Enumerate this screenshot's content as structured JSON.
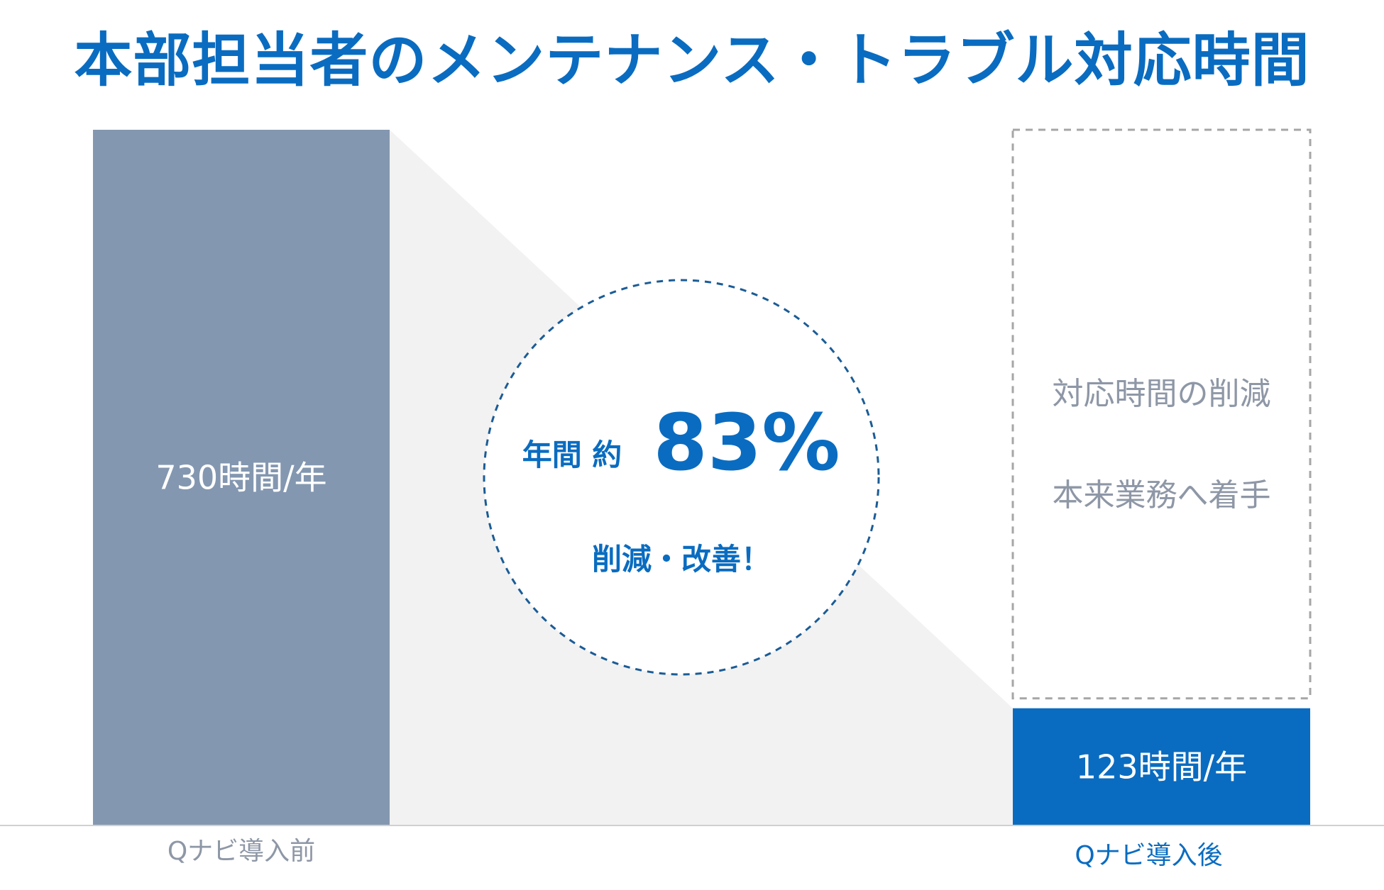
{
  "title": "本部担当者のメンテナンス・トラブル対応時間",
  "chart_data": {
    "type": "bar",
    "unit": "時間/年",
    "categories": [
      "Qナビ導入前",
      "Qナビ導入後"
    ],
    "values": [
      730,
      123
    ],
    "value_labels": [
      "730時間/年",
      "123時間/年"
    ],
    "ylim": [
      0,
      730
    ],
    "colors": {
      "before": "#8497b0",
      "after": "#0a6cc0",
      "connector": "#f2f2f2",
      "accent": "#0a6cc0",
      "muted_text": "#8e97a6",
      "baseline": "#d0d0d0"
    }
  },
  "reduction": {
    "prefix": "年間 約",
    "percent": "83%",
    "caption": "削減・改善！"
  },
  "notes": [
    "対応時間の削減",
    "本来業務へ着手"
  ]
}
